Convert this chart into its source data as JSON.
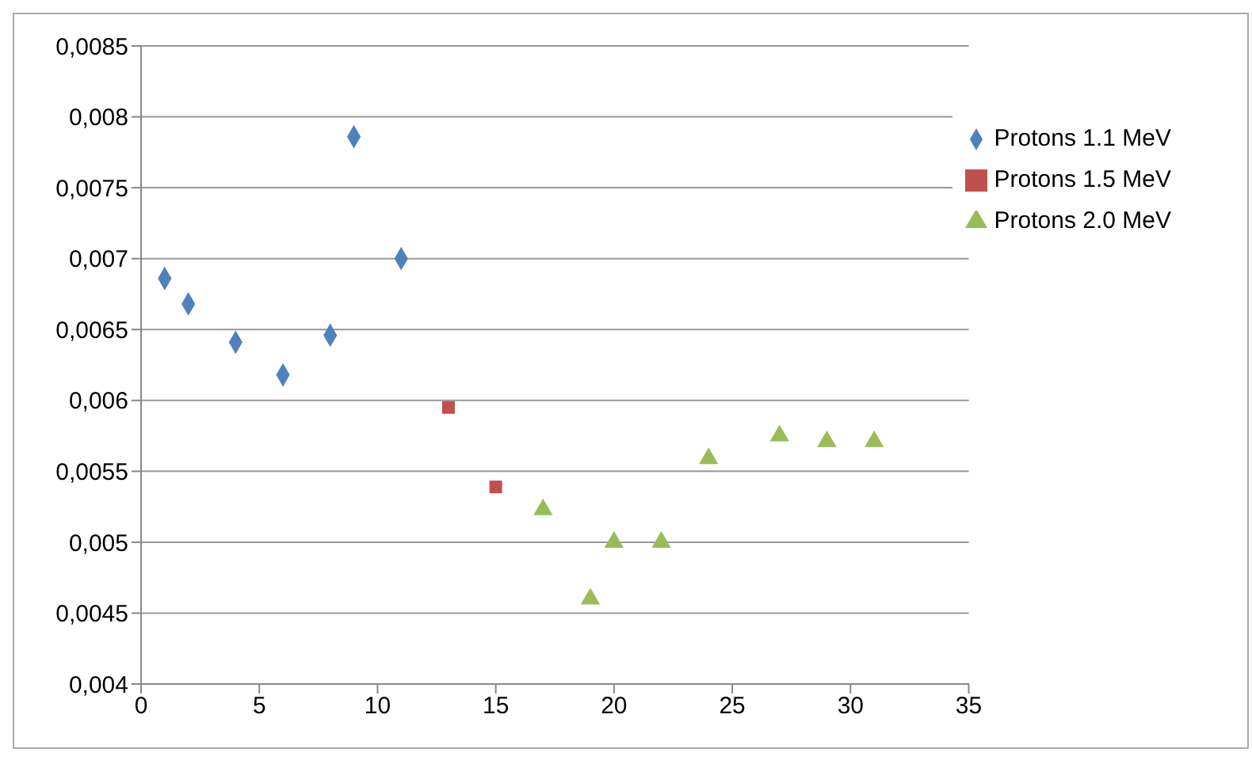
{
  "chart_data": {
    "type": "scatter",
    "series": [
      {
        "name": "Protons 1.1 MeV",
        "color": "#4f81bd",
        "marker": "diamond",
        "x": [
          1,
          2,
          4,
          6,
          8,
          9,
          11
        ],
        "values": [
          0.00686,
          0.00668,
          0.00641,
          0.00618,
          0.00646,
          0.00786,
          0.007
        ]
      },
      {
        "name": "Protons 1.5 MeV",
        "color": "#c0504d",
        "marker": "square",
        "x": [
          13,
          15
        ],
        "values": [
          0.00595,
          0.00539
        ]
      },
      {
        "name": "Protons 2.0 MeV",
        "color": "#9bbb59",
        "marker": "triangle",
        "x": [
          17,
          19,
          20,
          22,
          24,
          27,
          29,
          31
        ],
        "values": [
          0.00523,
          0.0046,
          0.005,
          0.005,
          0.00559,
          0.00575,
          0.00571,
          0.00571
        ]
      }
    ],
    "xlim": [
      0,
      35
    ],
    "xticks": [
      0,
      5,
      10,
      15,
      20,
      25,
      30,
      35
    ],
    "ylim": [
      0.004,
      0.0085
    ],
    "yticks": [
      {
        "value": 0.004,
        "label": "0,004"
      },
      {
        "value": 0.0045,
        "label": "0,0045"
      },
      {
        "value": 0.005,
        "label": "0,005"
      },
      {
        "value": 0.0055,
        "label": "0,0055"
      },
      {
        "value": 0.006,
        "label": "0,006"
      },
      {
        "value": 0.0065,
        "label": "0,0065"
      },
      {
        "value": 0.007,
        "label": "0,007"
      },
      {
        "value": 0.0075,
        "label": "0,0075"
      },
      {
        "value": 0.008,
        "label": "0,008"
      },
      {
        "value": 0.0085,
        "label": "0,0085"
      }
    ],
    "grid": "y",
    "legend": "top right"
  }
}
